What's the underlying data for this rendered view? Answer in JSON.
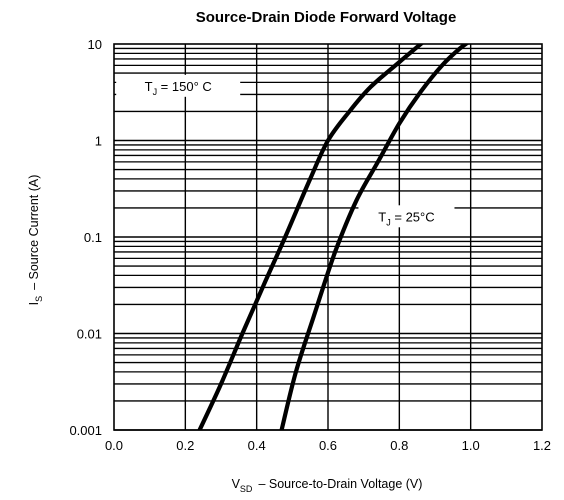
{
  "chart_data": {
    "type": "line",
    "title": "Source-Drain Diode Forward Voltage",
    "xlabel": {
      "symbol": "V",
      "subscript": "SD",
      "text": "–  Source-to-Drain Voltage (V)"
    },
    "ylabel": {
      "symbol": "I",
      "subscript": "S",
      "text": "–  Source Current (A)"
    },
    "xlim": [
      0.0,
      1.2
    ],
    "ylim": [
      0.001,
      10
    ],
    "y_scale": "log",
    "x_ticks": [
      "0.0",
      "0.2",
      "0.4",
      "0.6",
      "0.8",
      "1.0",
      "1.2"
    ],
    "y_ticks": [
      "0.001",
      "0.01",
      "0.1",
      "1",
      "10"
    ],
    "grid": "on (vertical at 0.2 V steps; logarithmic minor horizontal lines)",
    "series": [
      {
        "name": "T_J = 150° C",
        "label": {
          "symbol": "T",
          "subscript": "J",
          "text": " = 150° C"
        },
        "x": [
          0.24,
          0.3,
          0.36,
          0.42,
          0.48,
          0.55,
          0.6,
          0.66,
          0.72,
          0.8,
          0.88
        ],
        "y": [
          0.001,
          0.003,
          0.01,
          0.032,
          0.1,
          0.4,
          1.0,
          2.0,
          3.6,
          6.5,
          11.5
        ]
      },
      {
        "name": "T_J = 25°C",
        "label": {
          "symbol": "T",
          "subscript": "J",
          "text": " = 25°C"
        },
        "x": [
          0.47,
          0.51,
          0.56,
          0.62,
          0.68,
          0.74,
          0.8,
          0.86,
          0.92,
          0.97,
          1.01
        ],
        "y": [
          0.001,
          0.004,
          0.015,
          0.07,
          0.24,
          0.6,
          1.5,
          3.2,
          6.0,
          9.0,
          11.5
        ]
      }
    ]
  }
}
